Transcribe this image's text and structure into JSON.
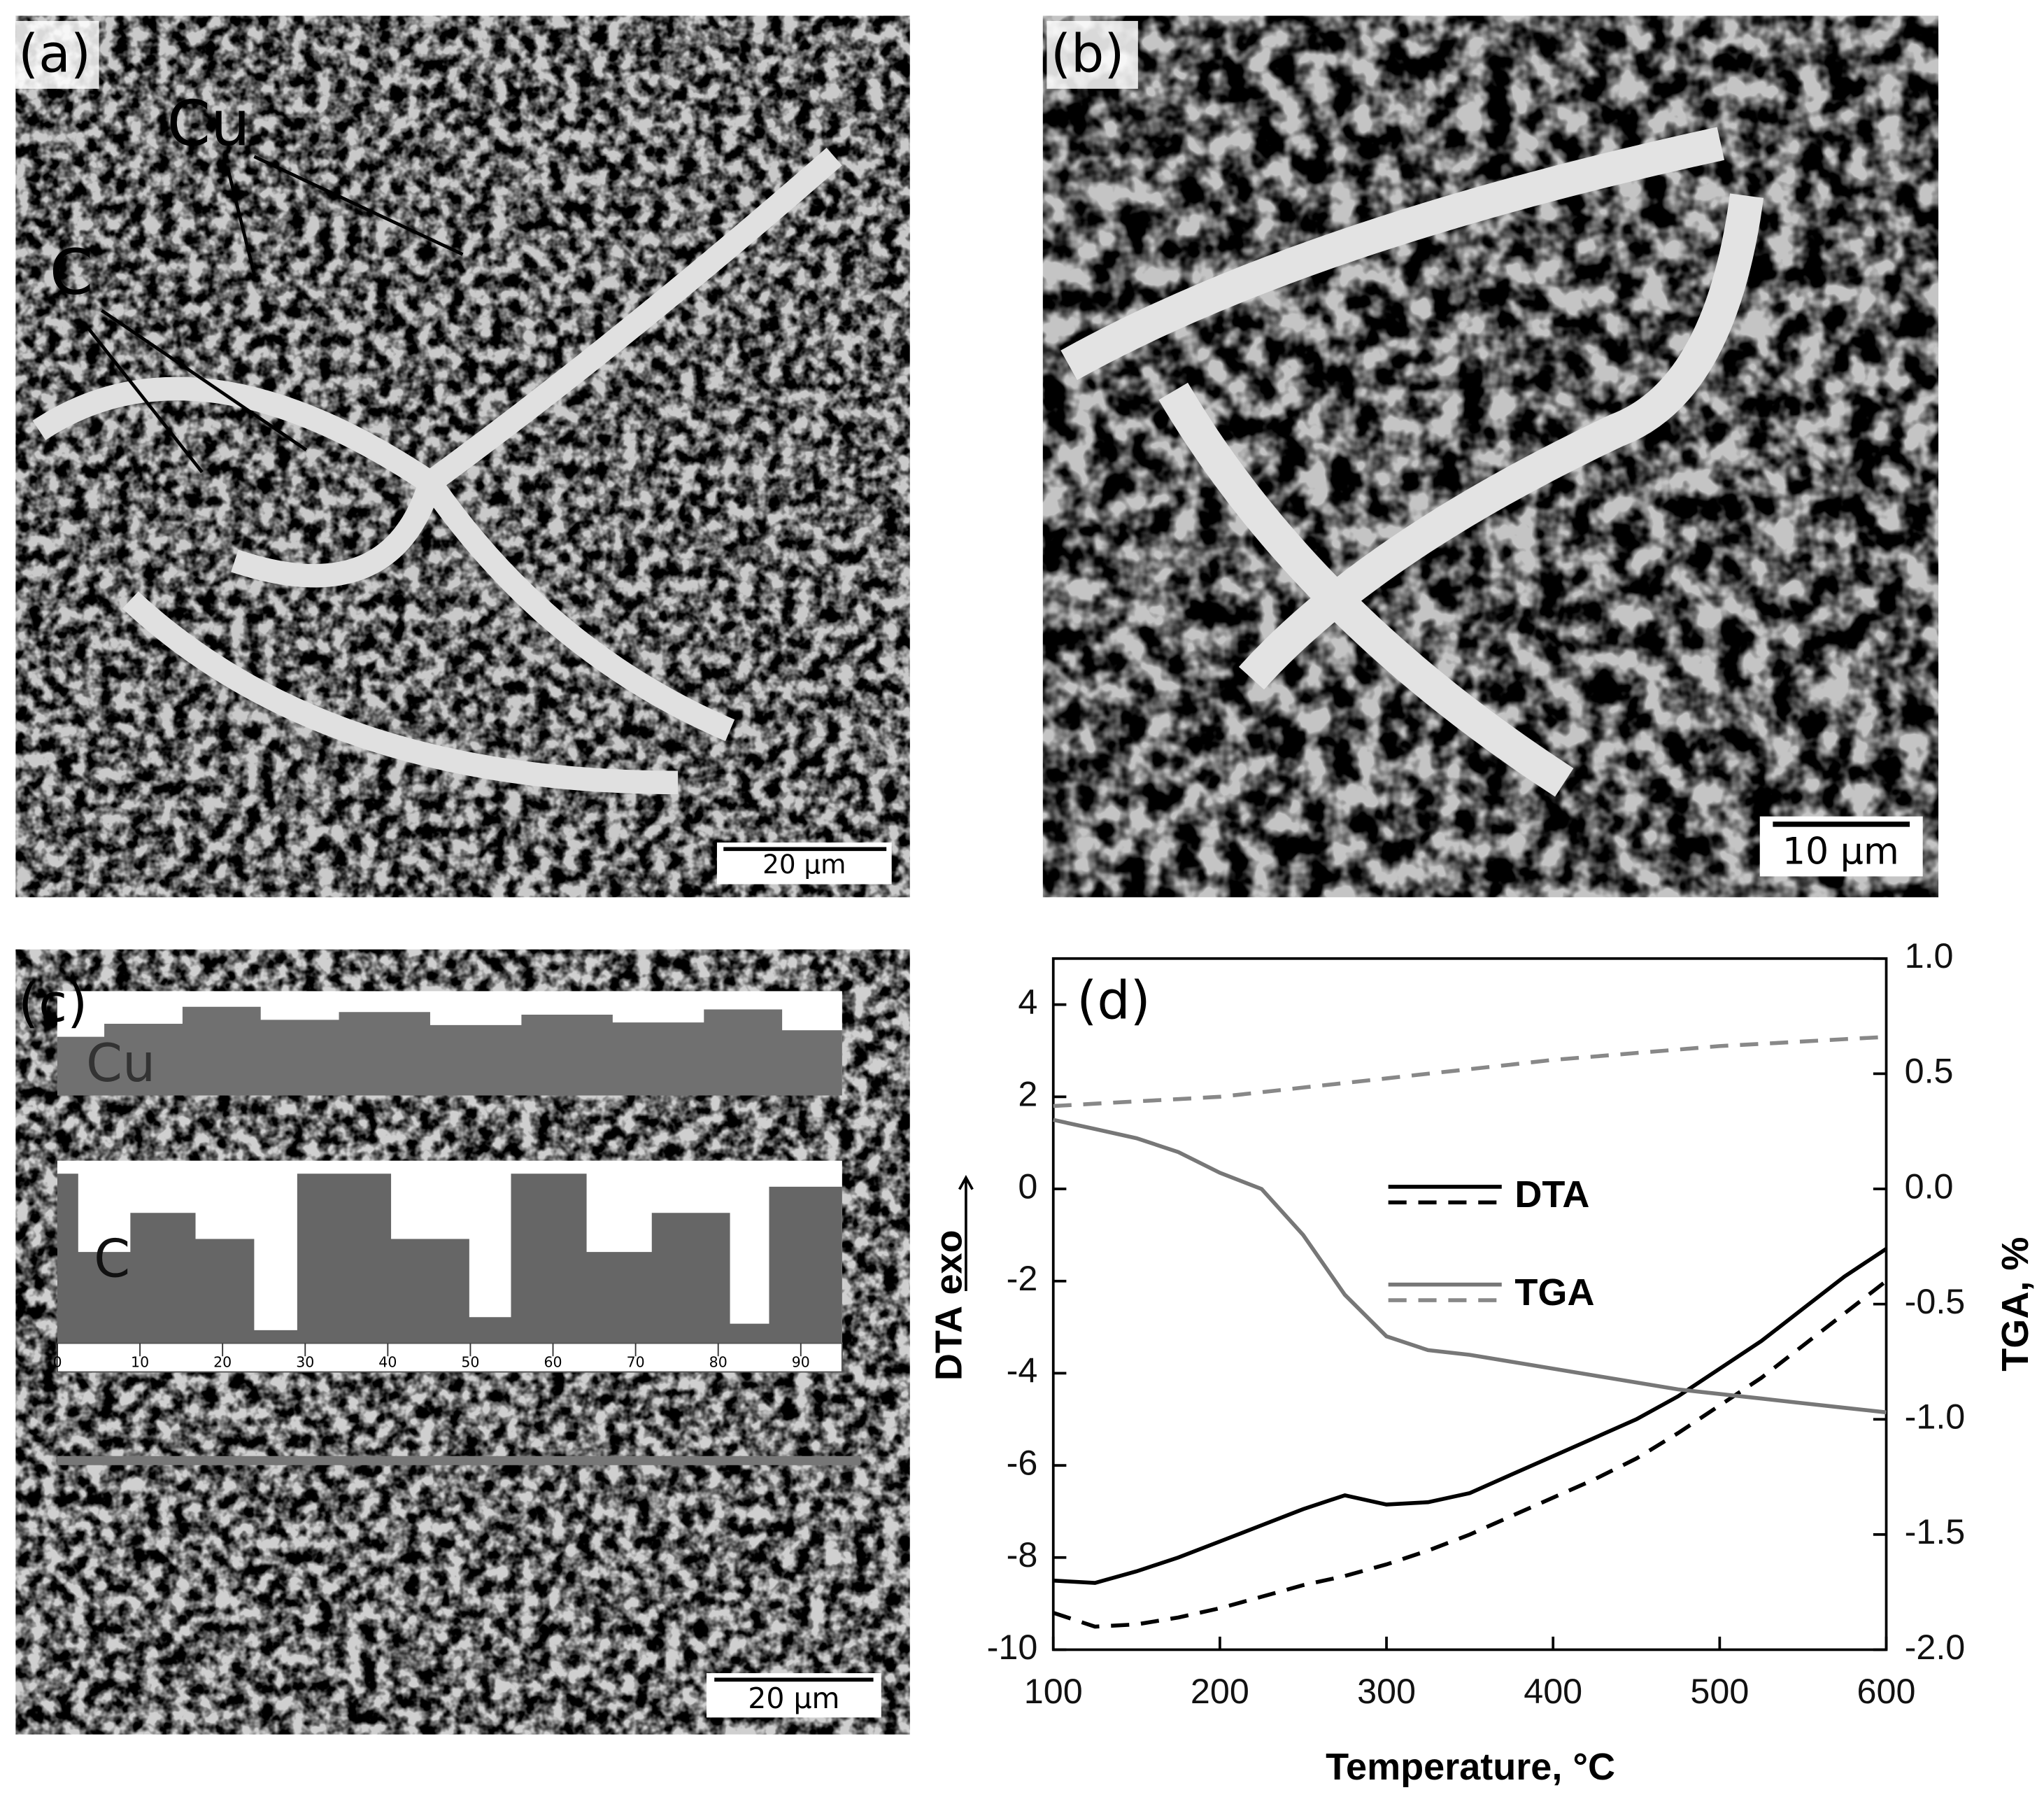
{
  "panels": {
    "a": {
      "label": "(a)",
      "annotations": [
        "Cu",
        "C"
      ],
      "scale_bar": "20 µm"
    },
    "b": {
      "label": "(b)",
      "scale_bar": "10 µm"
    },
    "c": {
      "label": "(c)",
      "profiles": [
        "Cu",
        "C"
      ],
      "profile_ticks": [
        0,
        10,
        20,
        30,
        40,
        50,
        60,
        70,
        80,
        90
      ],
      "scale_bar": "20 µm"
    }
  },
  "chart_data": {
    "type": "line",
    "label": "(d)",
    "x_label": "Temperature, °C",
    "y_label": "DTA",
    "y_label_note": "exo",
    "y2_label": "TGA, %",
    "x": [
      100,
      125,
      150,
      175,
      200,
      225,
      250,
      275,
      300,
      325,
      350,
      375,
      400,
      425,
      450,
      475,
      500,
      525,
      550,
      575,
      600
    ],
    "series": [
      {
        "name": "DTA",
        "color": "#000000",
        "dashed": false,
        "values": [
          -8.5,
          -8.55,
          -8.3,
          -8.0,
          -7.65,
          -7.3,
          -6.95,
          -6.65,
          -6.85,
          -6.8,
          -6.6,
          -6.2,
          -5.8,
          -5.4,
          -5.0,
          -4.5,
          -3.9,
          -3.3,
          -2.6,
          -1.9,
          -1.3
        ]
      },
      {
        "color": "#000000",
        "dashed": true,
        "values": [
          -9.2,
          -9.5,
          -9.45,
          -9.3,
          -9.1,
          -8.85,
          -8.6,
          -8.4,
          -8.15,
          -7.85,
          -7.5,
          -7.1,
          -6.7,
          -6.3,
          -5.85,
          -5.3,
          -4.7,
          -4.1,
          -3.4,
          -2.7,
          -2.0
        ]
      },
      {
        "name": "TGA",
        "color": "#777777",
        "dashed": false,
        "axis": "y2",
        "values": [
          0.3,
          0.26,
          0.22,
          0.16,
          0.07,
          0.0,
          -0.2,
          -0.46,
          -0.64,
          -0.7,
          -0.72,
          -0.75,
          -0.78,
          -0.81,
          -0.84,
          -0.87,
          -0.89,
          -0.91,
          -0.93,
          -0.95,
          -0.97
        ]
      },
      {
        "color": "#888888",
        "dashed": true,
        "axis": "y2",
        "values": [
          0.36,
          0.37,
          0.38,
          0.39,
          0.4,
          0.42,
          0.44,
          0.46,
          0.48,
          0.5,
          0.52,
          0.54,
          0.56,
          0.575,
          0.59,
          0.605,
          0.62,
          0.63,
          0.64,
          0.65,
          0.66
        ]
      }
    ],
    "xlim": [
      100,
      600
    ],
    "xticks": [
      100,
      200,
      300,
      400,
      500,
      600
    ],
    "ylim": [
      -10,
      5
    ],
    "yticks": [
      -10,
      -8,
      -6,
      -4,
      -2,
      0,
      2,
      4
    ],
    "y2lim": [
      -2,
      1
    ],
    "y2ticks": [
      {
        "value": -2,
        "label": "-2.0"
      },
      -1.5,
      {
        "value": -1,
        "label": "-1.0"
      },
      -0.5,
      {
        "value": 0,
        "label": "0.0"
      },
      0.5,
      {
        "value": 1,
        "label": "1.0"
      }
    ]
  }
}
